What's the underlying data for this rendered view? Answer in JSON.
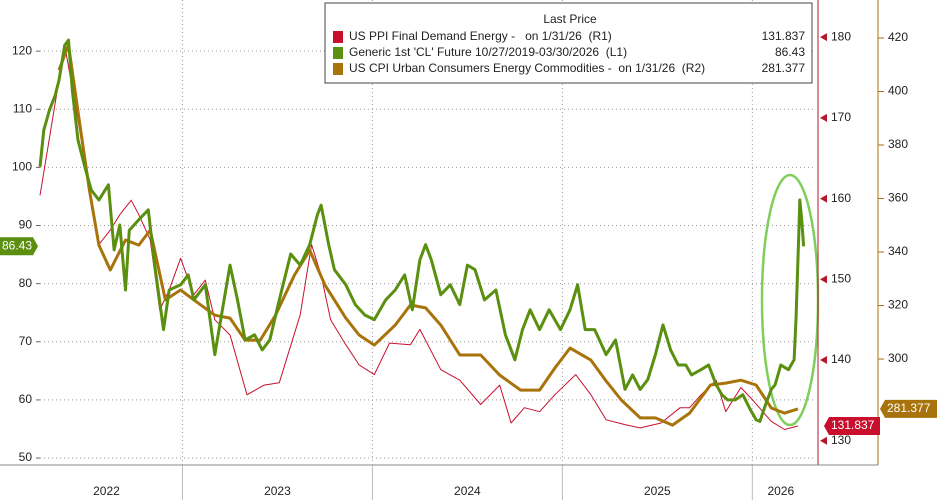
{
  "chart_data": {
    "type": "line",
    "legend_title": "Last Price",
    "legend": "top-right",
    "grid": true,
    "xlim": [
      2022.25,
      2026.33
    ],
    "xticks": [
      {
        "value": 2022.6,
        "label": "2022"
      },
      {
        "value": 2023.5,
        "label": "2023"
      },
      {
        "value": 2024.5,
        "label": "2024"
      },
      {
        "value": 2025.5,
        "label": "2025"
      },
      {
        "value": 2026.15,
        "label": "2026"
      }
    ],
    "xgrid": [
      2023,
      2024,
      2025,
      2026
    ],
    "ylim": [
      48.8,
      128.8
    ],
    "yticks": [
      50,
      60,
      70,
      80,
      90,
      100,
      110,
      120
    ],
    "y2lim": [
      127.0,
      184.6
    ],
    "y2ticks": [
      130,
      140,
      150,
      160,
      170,
      180
    ],
    "y2color": "#b5172b",
    "y3lim": [
      260.4,
      434.2
    ],
    "y3ticks": [
      300,
      320,
      340,
      360,
      380,
      400,
      420
    ],
    "y3color": "#a8730a",
    "series": [
      {
        "name": "US PPI Final Demand Energy -   on 1/31/26  (R1)",
        "color": "#c8102e",
        "axis": "y2",
        "width": 1,
        "x": [
          2022.25,
          2022.38,
          2022.45,
          2022.51,
          2022.56,
          2022.62,
          2022.67,
          2022.73,
          2022.77,
          2022.83,
          2022.88,
          2022.93,
          2022.99,
          2023.06,
          2023.12,
          2023.17,
          2023.25,
          2023.34,
          2023.43,
          2023.51,
          2023.62,
          2023.68,
          2023.73,
          2023.78,
          2023.86,
          2023.93,
          2024.01,
          2024.09,
          2024.2,
          2024.25,
          2024.36,
          2024.46,
          2024.57,
          2024.67,
          2024.73,
          2024.8,
          2024.88,
          2024.96,
          2025.07,
          2025.15,
          2025.23,
          2025.33,
          2025.41,
          2025.52,
          2025.62,
          2025.67,
          2025.73,
          2025.81,
          2025.86,
          2025.94,
          2026.0,
          2026.1,
          2026.17,
          2026.24
        ],
        "values": [
          160.4,
          179.0,
          169.7,
          161.1,
          154.3,
          156.1,
          158.0,
          159.8,
          158.0,
          154.9,
          146.2,
          148.7,
          152.6,
          148.1,
          149.9,
          145.0,
          143.1,
          135.7,
          136.9,
          137.2,
          145.6,
          154.3,
          150.5,
          145.0,
          141.9,
          139.4,
          138.2,
          142.1,
          141.9,
          143.8,
          138.8,
          137.5,
          134.5,
          136.9,
          132.2,
          134.1,
          133.6,
          135.7,
          138.2,
          135.7,
          132.6,
          132.0,
          131.6,
          132.2,
          134.1,
          134.1,
          135.7,
          137.5,
          133.6,
          136.6,
          135.1,
          132.4,
          131.4,
          131.837
        ]
      },
      {
        "name": "Generic 1st 'CL' Future 10/27/2019-03/30/2026  (L1)",
        "color": "#5a8f0f",
        "axis": "y",
        "width": 3,
        "x": [
          2022.25,
          2022.27,
          2022.3,
          2022.33,
          2022.35,
          2022.38,
          2022.4,
          2022.42,
          2022.45,
          2022.49,
          2022.52,
          2022.56,
          2022.61,
          2022.64,
          2022.67,
          2022.7,
          2022.72,
          2022.77,
          2022.82,
          2022.85,
          2022.9,
          2022.93,
          2022.99,
          2023.03,
          2023.06,
          2023.12,
          2023.17,
          2023.21,
          2023.25,
          2023.29,
          2023.33,
          2023.38,
          2023.42,
          2023.46,
          2023.51,
          2023.57,
          2023.62,
          2023.67,
          2023.71,
          2023.73,
          2023.77,
          2023.8,
          2023.86,
          2023.91,
          2023.96,
          2024.01,
          2024.07,
          2024.12,
          2024.17,
          2024.21,
          2024.25,
          2024.28,
          2024.31,
          2024.36,
          2024.41,
          2024.46,
          2024.5,
          2024.54,
          2024.59,
          2024.65,
          2024.7,
          2024.75,
          2024.79,
          2024.83,
          2024.88,
          2024.93,
          2024.99,
          2025.04,
          2025.08,
          2025.12,
          2025.17,
          2025.23,
          2025.28,
          2025.33,
          2025.37,
          2025.41,
          2025.45,
          2025.49,
          2025.53,
          2025.57,
          2025.61,
          2025.65,
          2025.68,
          2025.73,
          2025.77,
          2025.81,
          2025.84,
          2025.87,
          2025.91,
          2025.95,
          2025.99,
          2026.02,
          2026.04,
          2026.07,
          2026.1,
          2026.12,
          2026.15,
          2026.19,
          2026.22,
          2026.23,
          2026.245,
          2026.25,
          2026.26,
          2026.27
        ],
        "values": [
          100.1,
          106.4,
          109.9,
          112.4,
          115.0,
          121.0,
          121.9,
          113.3,
          104.7,
          99.6,
          96.1,
          94.4,
          97.0,
          85.8,
          90.1,
          78.9,
          89.2,
          91.0,
          92.7,
          84.1,
          72.1,
          78.9,
          79.8,
          81.5,
          77.2,
          79.8,
          67.8,
          75.5,
          83.2,
          77.2,
          70.3,
          71.2,
          68.6,
          70.3,
          77.2,
          85.1,
          83.2,
          86.7,
          91.8,
          93.5,
          86.7,
          82.4,
          79.8,
          76.4,
          74.6,
          73.8,
          77.2,
          78.9,
          81.5,
          75.5,
          84.1,
          86.7,
          84.1,
          78.1,
          79.8,
          76.4,
          83.2,
          82.4,
          77.2,
          78.9,
          71.2,
          66.9,
          72.1,
          75.5,
          72.1,
          75.5,
          72.1,
          75.5,
          79.8,
          72.1,
          72.1,
          67.8,
          70.3,
          61.8,
          64.3,
          61.8,
          63.5,
          67.8,
          72.9,
          68.6,
          66.0,
          66.0,
          64.3,
          65.2,
          66.0,
          62.6,
          60.9,
          60.0,
          60.0,
          60.9,
          58.3,
          56.6,
          56.3,
          59.2,
          61.8,
          62.6,
          66.0,
          65.2,
          66.9,
          73.8,
          89.2,
          94.4,
          91.0,
          86.43
        ]
      },
      {
        "name": "US CPI Urban Consumers Energy Commodities -  on 1/31/26  (R2)",
        "color": "#a8730a",
        "axis": "y3",
        "width": 3,
        "x": [
          2022.35,
          2022.4,
          2022.46,
          2022.51,
          2022.56,
          2022.62,
          2022.7,
          2022.77,
          2022.83,
          2022.91,
          2022.99,
          2023.06,
          2023.17,
          2023.25,
          2023.33,
          2023.41,
          2023.49,
          2023.59,
          2023.67,
          2023.75,
          2023.86,
          2023.93,
          2024.01,
          2024.12,
          2024.2,
          2024.28,
          2024.36,
          2024.46,
          2024.57,
          2024.67,
          2024.78,
          2024.88,
          2024.96,
          2025.04,
          2025.15,
          2025.23,
          2025.31,
          2025.41,
          2025.49,
          2025.58,
          2025.67,
          2025.78,
          2025.86,
          2025.94,
          2026.02,
          2026.1,
          2026.17,
          2026.24
        ],
        "values": [
          408.0,
          417.4,
          387.5,
          363.2,
          342.6,
          333.3,
          344.5,
          342.6,
          348.2,
          322.1,
          325.8,
          322.1,
          316.4,
          315.3,
          307.1,
          307.1,
          316.4,
          331.4,
          340.7,
          327.7,
          315.3,
          309.0,
          305.2,
          312.7,
          320.2,
          319.1,
          312.7,
          301.5,
          301.5,
          294.0,
          288.4,
          288.4,
          296.6,
          304.1,
          299.6,
          291.8,
          284.7,
          278.0,
          278.0,
          275.3,
          279.8,
          290.3,
          291.0,
          292.1,
          290.3,
          281.7,
          279.8,
          281.377
        ]
      }
    ]
  }
}
